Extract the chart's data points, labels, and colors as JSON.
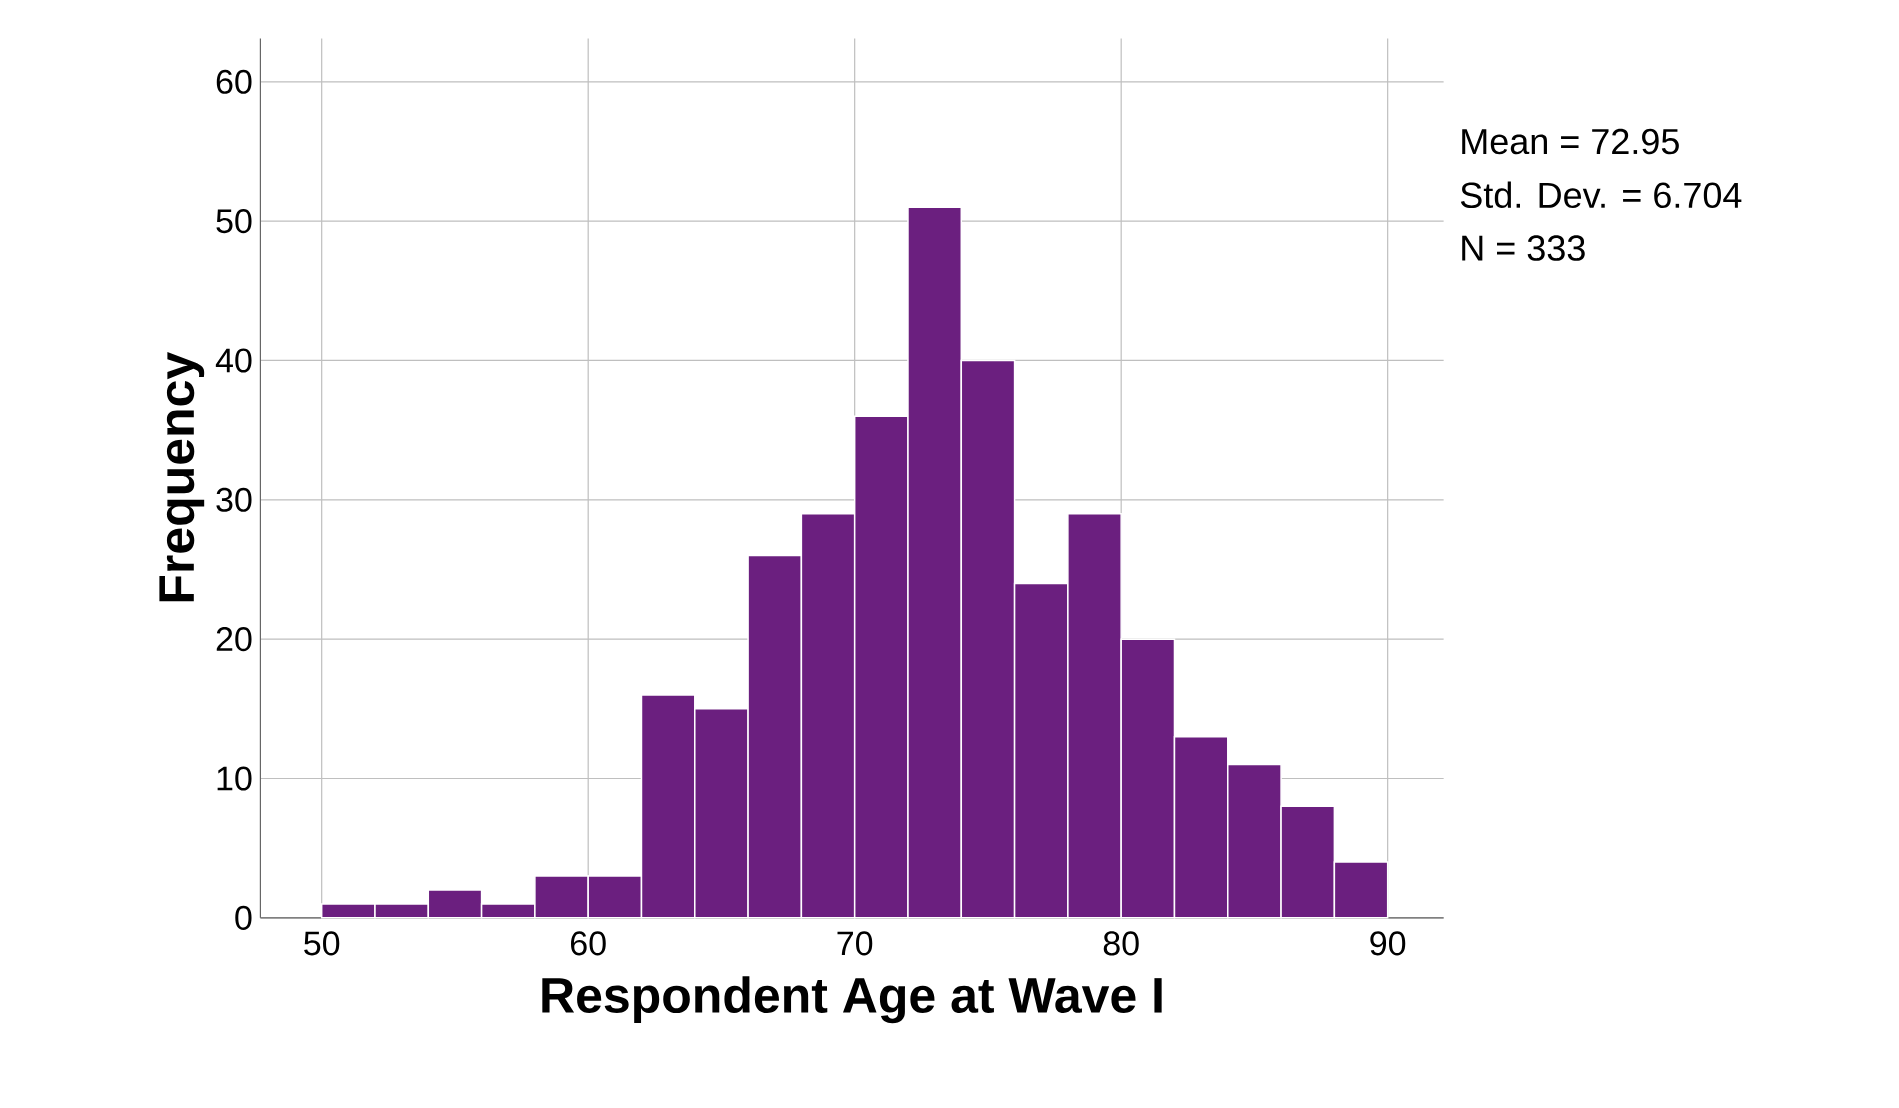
{
  "chart_data": {
    "type": "histogram",
    "xlabel": "Respondent Age at Wave I",
    "ylabel": "Frequency",
    "bins": [
      50,
      52,
      54,
      56,
      58,
      60,
      62,
      64,
      66,
      68,
      70,
      72,
      74,
      76,
      78,
      80,
      82,
      84,
      86,
      88,
      90
    ],
    "values": [
      1,
      1,
      2,
      1,
      3,
      3,
      16,
      15,
      26,
      29,
      36,
      51,
      40,
      24,
      29,
      20,
      13,
      11,
      8,
      4
    ],
    "color": "#6b1f7f",
    "xlim": [
      47.7,
      92.1
    ],
    "ylim": [
      0,
      63.1
    ],
    "xticks": [
      50,
      60,
      70,
      80,
      90
    ],
    "yticks": [
      0,
      10,
      20,
      30,
      40,
      50,
      60
    ],
    "grid": true,
    "annotations": [
      "Mean = 72.95",
      "Std. Dev. = 6.704",
      "N = 333"
    ]
  }
}
